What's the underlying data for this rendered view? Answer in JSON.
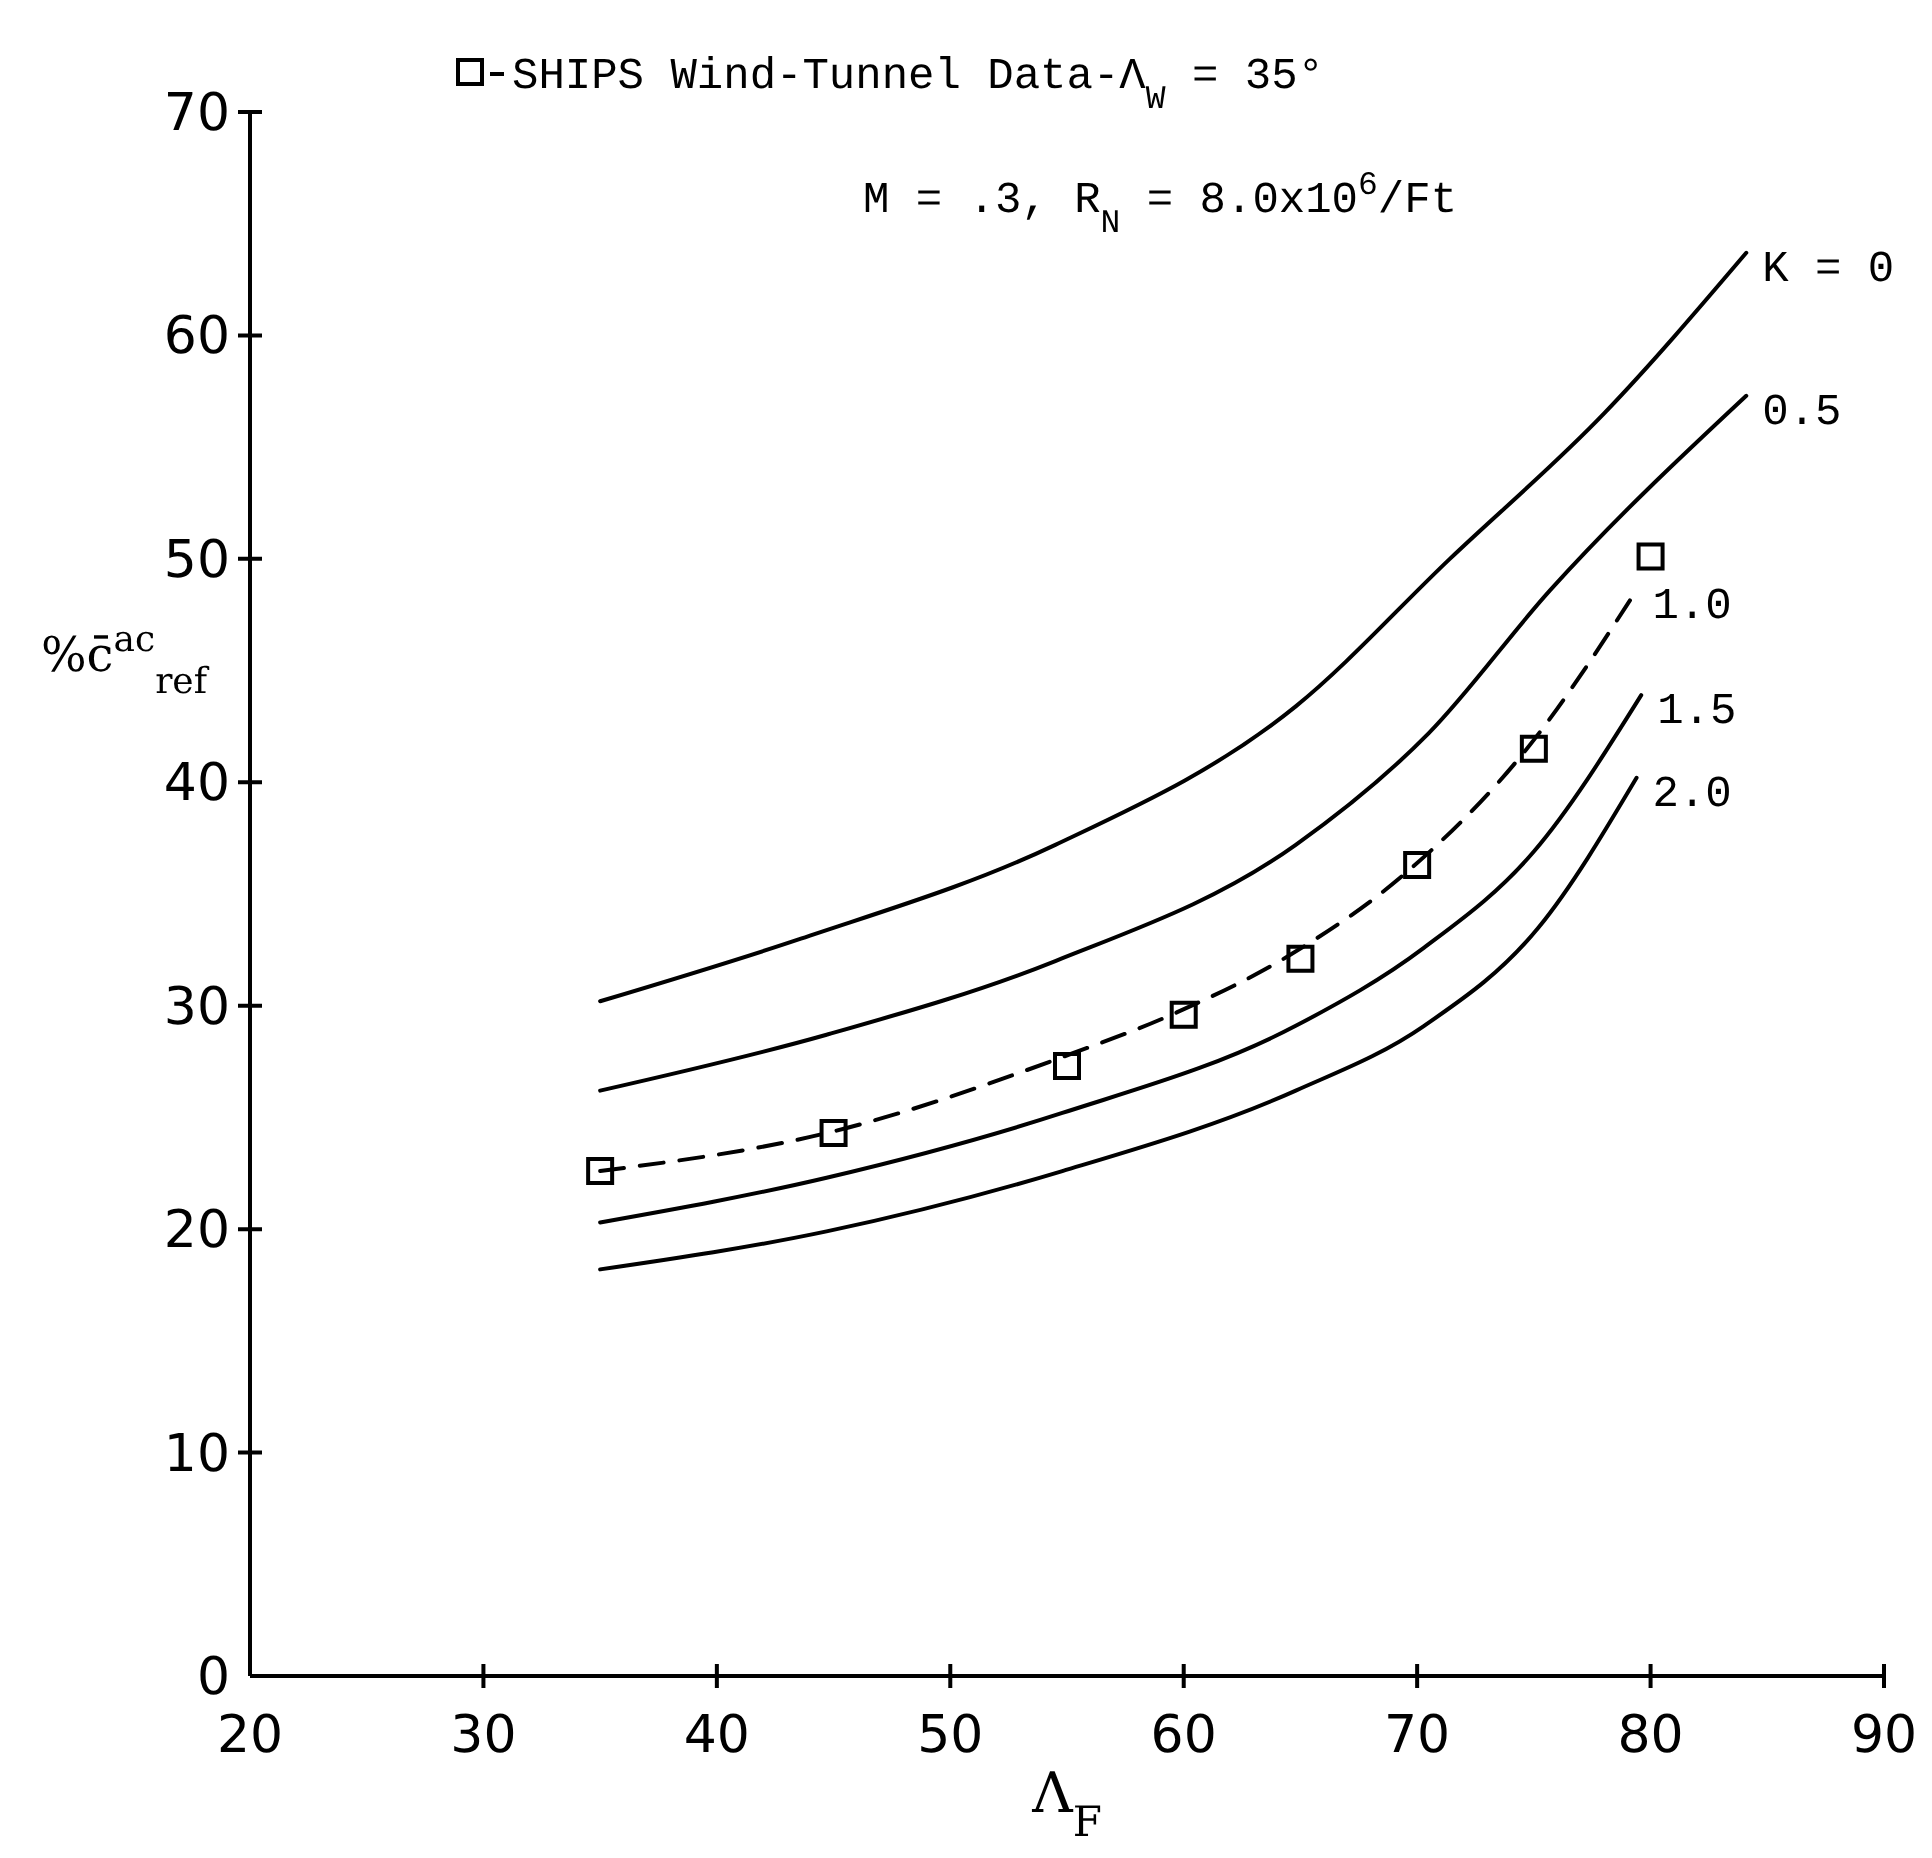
{
  "chart_data": {
    "type": "line",
    "xlabel": "Λ$_{F}$",
    "ylabel": "%c̄$^{ac}$$_{ref}$",
    "annotations": [
      "M = .3, R$_{N}$ = 8.0x10$^{6}$/Ft"
    ],
    "xlim": [
      20,
      90
    ],
    "ylim": [
      0,
      70
    ],
    "xticks": [
      20,
      30,
      40,
      50,
      60,
      70,
      80,
      90
    ],
    "yticks": [
      0,
      10,
      20,
      30,
      40,
      50,
      60,
      70
    ],
    "grid": false,
    "legend": "top left",
    "series": [
      {
        "name": "K = 0",
        "color": "#000000",
        "line_style": "solid",
        "marker": "none",
        "x": [
          35,
          43.6,
          54.5,
          64.8,
          71.4,
          78,
          84.1
        ],
        "values": [
          30.2,
          33,
          37.2,
          43.4,
          50,
          56.5,
          63.7
        ]
      },
      {
        "name": "0.5",
        "color": "#000000",
        "line_style": "solid",
        "marker": "none",
        "x": [
          35,
          44.7,
          54.5,
          64.8,
          70.5,
          75.7,
          84.1
        ],
        "values": [
          26.2,
          28.7,
          32,
          37.2,
          42.2,
          48.6,
          57.3
        ]
      },
      {
        "name": "1.0",
        "color": "#000000",
        "line_style": "dashed",
        "marker": "none",
        "x": [
          35,
          44.7,
          54.8,
          59.7,
          64.6,
          69.8,
          74.7,
          79.4
        ],
        "values": [
          22.6,
          24.3,
          27.7,
          29.7,
          32.3,
          36.2,
          41.5,
          48.6
        ]
      },
      {
        "name": "1.5",
        "color": "#000000",
        "line_style": "solid",
        "marker": "none",
        "x": [
          35,
          44.7,
          54.8,
          64.8,
          70.3,
          75,
          79.6
        ],
        "values": [
          20.3,
          22.3,
          25.2,
          29.1,
          32.6,
          36.9,
          43.9
        ]
      },
      {
        "name": "2.0",
        "color": "#000000",
        "line_style": "solid",
        "marker": "none",
        "x": [
          35,
          44.7,
          54.8,
          64.8,
          70.3,
          75.2,
          79.4
        ],
        "values": [
          18.2,
          19.9,
          22.6,
          26.2,
          29.1,
          33.5,
          40.2
        ]
      },
      {
        "name": "SHIPS Wind-Tunnel Data-Λ$_{W}$ = 35°",
        "type": "scatter",
        "color": "#000000",
        "marker": "square",
        "x": [
          35,
          45,
          55,
          60,
          65,
          70,
          75,
          80
        ],
        "values": [
          22.6,
          24.3,
          27.3,
          29.6,
          32.1,
          36.3,
          41.5,
          50.1
        ]
      }
    ]
  }
}
